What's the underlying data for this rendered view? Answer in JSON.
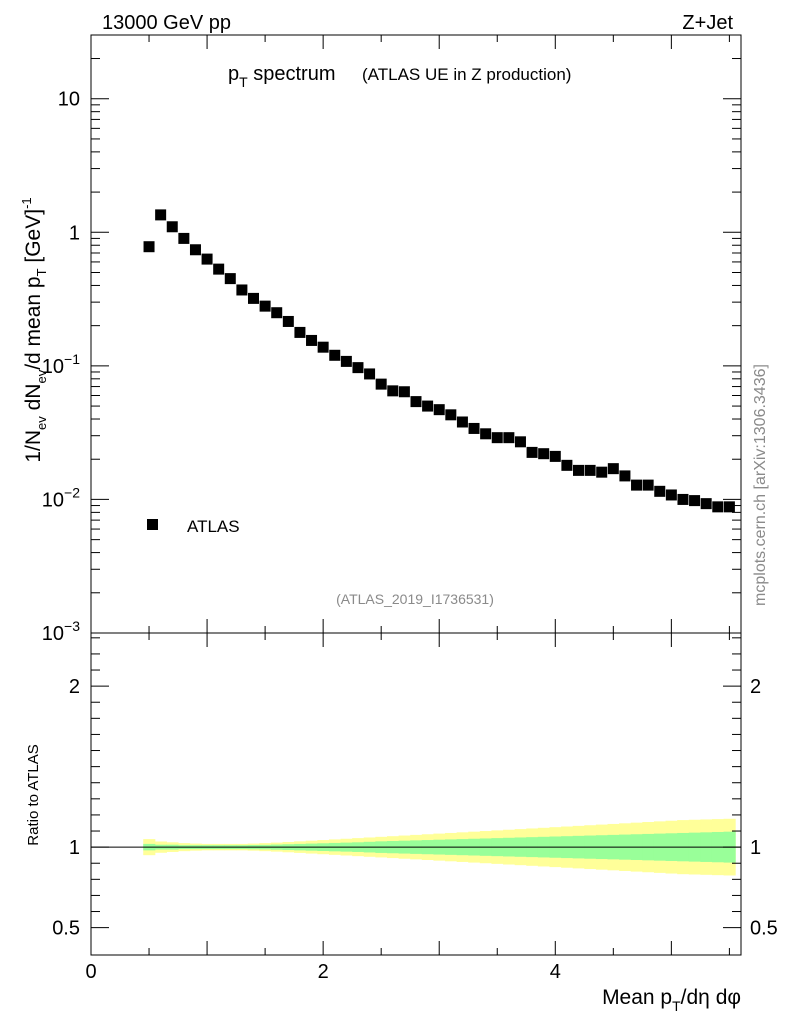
{
  "header": {
    "energy_label": "13000 GeV pp",
    "process_label": "Z+Jet"
  },
  "side_label": "mcplots.cern.ch [arXiv:1306.3436]",
  "chart_data": [
    {
      "type": "scatter",
      "title_main": "p",
      "title_sub": "T",
      "title_word": " spectrum",
      "subtitle": "(ATLAS UE in Z production)",
      "ylabel": "1/N_ev dN_ev/d mean p_T [GeV]^-1",
      "yscale": "log",
      "ylim": [
        0.001,
        30
      ],
      "xlim": [
        0,
        5.6
      ],
      "yticks": [
        {
          "value": 10,
          "mant": "10",
          "exp": ""
        },
        {
          "value": 1,
          "mant": "1",
          "exp": ""
        },
        {
          "value": 0.1,
          "mant": "10",
          "exp": "−1"
        },
        {
          "value": 0.01,
          "mant": "10",
          "exp": "−2"
        },
        {
          "value": 0.001,
          "mant": "10",
          "exp": "−3"
        }
      ],
      "legend": {
        "label": "ATLAS",
        "position": "bottom-left"
      },
      "watermark": "(ATLAS_2019_I1736531)",
      "series": [
        {
          "name": "ATLAS",
          "x": [
            0.5,
            0.6,
            0.7,
            0.8,
            0.9,
            1.0,
            1.1,
            1.2,
            1.3,
            1.4,
            1.5,
            1.6,
            1.7,
            1.8,
            1.9,
            2.0,
            2.1,
            2.2,
            2.3,
            2.4,
            2.5,
            2.6,
            2.7,
            2.8,
            2.9,
            3.0,
            3.1,
            3.2,
            3.3,
            3.4,
            3.5,
            3.6,
            3.7,
            3.8,
            3.9,
            4.0,
            4.1,
            4.2,
            4.3,
            4.4,
            4.5,
            4.6,
            4.7,
            4.8,
            4.9,
            5.0,
            5.1,
            5.2,
            5.3,
            5.4,
            5.5
          ],
          "y": [
            0.78,
            1.35,
            1.1,
            0.9,
            0.74,
            0.63,
            0.53,
            0.45,
            0.37,
            0.32,
            0.28,
            0.25,
            0.215,
            0.178,
            0.155,
            0.138,
            0.12,
            0.108,
            0.097,
            0.087,
            0.073,
            0.065,
            0.064,
            0.054,
            0.05,
            0.047,
            0.043,
            0.038,
            0.034,
            0.031,
            0.029,
            0.029,
            0.027,
            0.0225,
            0.022,
            0.021,
            0.018,
            0.0165,
            0.0165,
            0.016,
            0.017,
            0.015,
            0.0128,
            0.0128,
            0.0115,
            0.0108,
            0.01,
            0.0098,
            0.0093,
            0.0088,
            0.0088
          ]
        }
      ]
    },
    {
      "type": "area",
      "ylabel": "Ratio to ATLAS",
      "ylim": [
        0.33,
        2.33
      ],
      "xlim": [
        0,
        5.6
      ],
      "yticks": [
        {
          "value": 2,
          "label": "2"
        },
        {
          "value": 1,
          "label": "1"
        },
        {
          "value": 0.5,
          "label": "0.5"
        }
      ],
      "xticks": [
        {
          "value": 0,
          "label": "0"
        },
        {
          "value": 2,
          "label": "2"
        },
        {
          "value": 4,
          "label": "4"
        }
      ],
      "xlabel": "Mean p_T/dη dφ",
      "reference_line": 1,
      "bins": [
        0.45,
        0.55,
        0.65,
        0.75,
        0.85,
        0.95,
        1.05,
        1.15,
        1.25,
        1.35,
        1.45,
        1.55,
        1.65,
        1.75,
        1.85,
        1.95,
        2.05,
        2.15,
        2.25,
        2.35,
        2.45,
        2.55,
        2.65,
        2.75,
        2.85,
        2.95,
        3.05,
        3.15,
        3.25,
        3.35,
        3.45,
        3.55,
        3.65,
        3.75,
        3.85,
        3.95,
        4.05,
        4.15,
        4.25,
        4.35,
        4.45,
        4.55,
        4.65,
        4.75,
        4.85,
        4.95,
        5.05,
        5.15,
        5.25,
        5.35,
        5.45,
        5.55
      ],
      "band_inner_halfwidth": [
        0.02,
        0.015,
        0.015,
        0.012,
        0.012,
        0.012,
        0.012,
        0.012,
        0.012,
        0.013,
        0.014,
        0.016,
        0.018,
        0.02,
        0.022,
        0.024,
        0.026,
        0.028,
        0.03,
        0.033,
        0.036,
        0.038,
        0.04,
        0.042,
        0.044,
        0.046,
        0.048,
        0.05,
        0.052,
        0.054,
        0.056,
        0.058,
        0.06,
        0.062,
        0.064,
        0.066,
        0.068,
        0.07,
        0.072,
        0.074,
        0.076,
        0.078,
        0.08,
        0.082,
        0.084,
        0.086,
        0.088,
        0.09,
        0.092,
        0.094,
        0.096
      ],
      "band_outer_halfwidth": [
        0.05,
        0.035,
        0.03,
        0.025,
        0.022,
        0.02,
        0.02,
        0.02,
        0.02,
        0.022,
        0.025,
        0.028,
        0.032,
        0.036,
        0.04,
        0.044,
        0.048,
        0.052,
        0.056,
        0.06,
        0.064,
        0.068,
        0.072,
        0.076,
        0.08,
        0.084,
        0.088,
        0.092,
        0.096,
        0.1,
        0.104,
        0.108,
        0.112,
        0.116,
        0.12,
        0.124,
        0.128,
        0.132,
        0.136,
        0.14,
        0.144,
        0.148,
        0.152,
        0.156,
        0.16,
        0.164,
        0.168,
        0.17,
        0.172,
        0.174,
        0.176
      ]
    }
  ]
}
